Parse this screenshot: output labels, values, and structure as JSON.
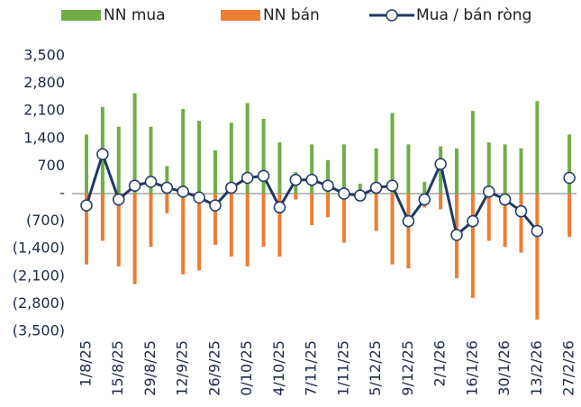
{
  "chart_data": {
    "type": "combo",
    "categories": [
      "1/8/25",
      null,
      "15/8/25",
      null,
      "29/8/25",
      null,
      "12/9/25",
      null,
      "26/9/25",
      null,
      "0/10/25",
      null,
      "4/10/25",
      null,
      "7/11/25",
      null,
      "1/11/25",
      null,
      "5/12/25",
      null,
      "9/12/25",
      null,
      "2/1/26",
      null,
      "16/1/26",
      null,
      "30/1/26",
      null,
      "13/2/26",
      null,
      "27/2/26"
    ],
    "series": [
      {
        "name": "NN mua",
        "type": "bar",
        "color": "#70ad47",
        "values": [
          1500,
          2200,
          1700,
          2550,
          1700,
          700,
          2150,
          1850,
          1100,
          1800,
          2300,
          1900,
          1300,
          550,
          1250,
          850,
          1250,
          250,
          1150,
          2050,
          1250,
          300,
          1200,
          1150,
          2100,
          1300,
          1250,
          1150,
          2350,
          null,
          1500
        ]
      },
      {
        "name": "NN bán",
        "type": "bar",
        "color": "#ed7d31",
        "values": [
          -1800,
          -1200,
          -1850,
          -2300,
          -1350,
          -500,
          -2050,
          -1950,
          -1300,
          -1600,
          -1850,
          -1350,
          -1600,
          -150,
          -800,
          -600,
          -1250,
          -150,
          -950,
          -1800,
          -1900,
          -350,
          -400,
          -2150,
          -2650,
          -1200,
          -1350,
          -1500,
          -3200,
          null,
          -1100
        ]
      },
      {
        "name": "Mua / bán ròng",
        "type": "line",
        "color": "#1f3864",
        "values": [
          -300,
          1000,
          -150,
          200,
          300,
          150,
          50,
          -100,
          -300,
          150,
          400,
          450,
          -350,
          350,
          350,
          200,
          0,
          -50,
          150,
          200,
          -700,
          -150,
          750,
          -1050,
          -700,
          50,
          -150,
          -450,
          -950,
          null,
          400
        ]
      }
    ],
    "ylim": [
      -3500,
      3500
    ],
    "yticks": [
      {
        "value": -3500,
        "label": "(3,500)"
      },
      {
        "value": -2800,
        "label": "(2,800)"
      },
      {
        "value": -2100,
        "label": "(2,100)"
      },
      {
        "value": -1400,
        "label": "(1,400)"
      },
      {
        "value": -700,
        "label": "(700)"
      },
      {
        "value": 0,
        "label": "-"
      },
      700,
      {
        "value": 1400,
        "label": "1,400"
      },
      {
        "value": 2100,
        "label": "2,100"
      },
      {
        "value": 2800,
        "label": "2,800"
      },
      {
        "value": 3500,
        "label": "3,500"
      }
    ],
    "legend": "top",
    "grid": false
  }
}
